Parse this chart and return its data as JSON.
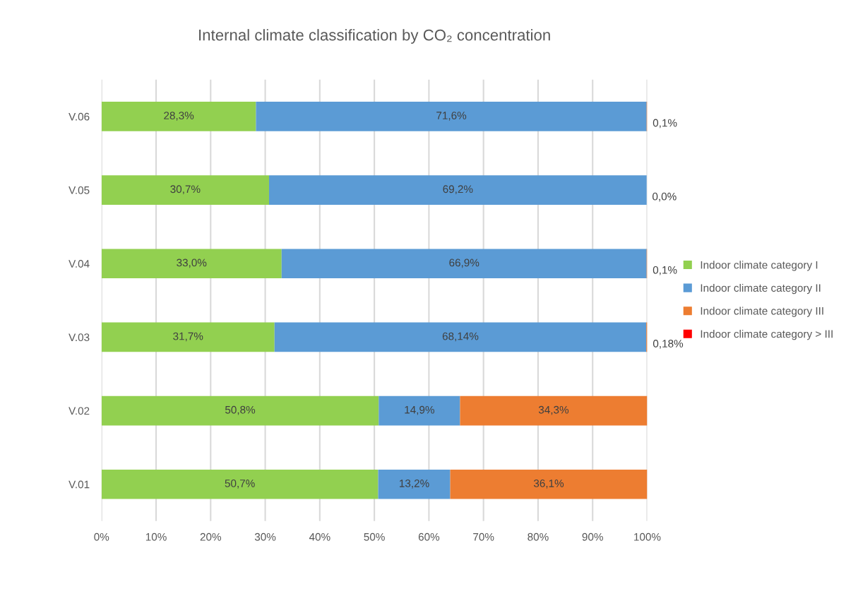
{
  "chart_data": {
    "type": "bar",
    "orientation": "horizontal",
    "stacked": true,
    "title": "Internal climate classification by CO₂ concentration",
    "categories": [
      "V.06",
      "V.05",
      "V.04",
      "V.03",
      "V.02",
      "V.01"
    ],
    "series": [
      {
        "name": "Indoor climate category I",
        "color": "#92d050",
        "values": [
          28.3,
          30.7,
          33.0,
          31.7,
          50.8,
          50.7
        ],
        "value_labels": [
          "28,3%",
          "30,7%",
          "33,0%",
          "31,7%",
          "50,8%",
          "50,7%"
        ]
      },
      {
        "name": "Indoor climate category II",
        "color": "#5b9bd5",
        "values": [
          71.6,
          69.2,
          66.9,
          68.14,
          14.9,
          13.2
        ],
        "value_labels": [
          "71,6%",
          "69,2%",
          "66,9%",
          "68,14%",
          "14,9%",
          "13,2%"
        ]
      },
      {
        "name": "Indoor climate category III",
        "color": "#ed7d31",
        "values": [
          0.1,
          0.0,
          0.1,
          0.18,
          34.3,
          36.1
        ],
        "value_labels": [
          "0,1%",
          "0,0%",
          "0,1%",
          "0,18%",
          "34,3%",
          "36,1%"
        ]
      },
      {
        "name": "Indoor climate category > III",
        "color": "#ff0000",
        "values": [
          0,
          0,
          0,
          0,
          0,
          0
        ]
      }
    ],
    "xlim": [
      0,
      100
    ],
    "xticks": [
      {
        "value": 0,
        "label": "0%"
      },
      {
        "value": 10,
        "label": "10%"
      },
      {
        "value": 20,
        "label": "20%"
      },
      {
        "value": 30,
        "label": "30%"
      },
      {
        "value": 40,
        "label": "40%"
      },
      {
        "value": 50,
        "label": "50%"
      },
      {
        "value": 60,
        "label": "60%"
      },
      {
        "value": 70,
        "label": "70%"
      },
      {
        "value": 80,
        "label": "80%"
      },
      {
        "value": 90,
        "label": "90%"
      },
      {
        "value": 100,
        "label": "100%"
      }
    ],
    "grid": "x",
    "legend": "right"
  }
}
